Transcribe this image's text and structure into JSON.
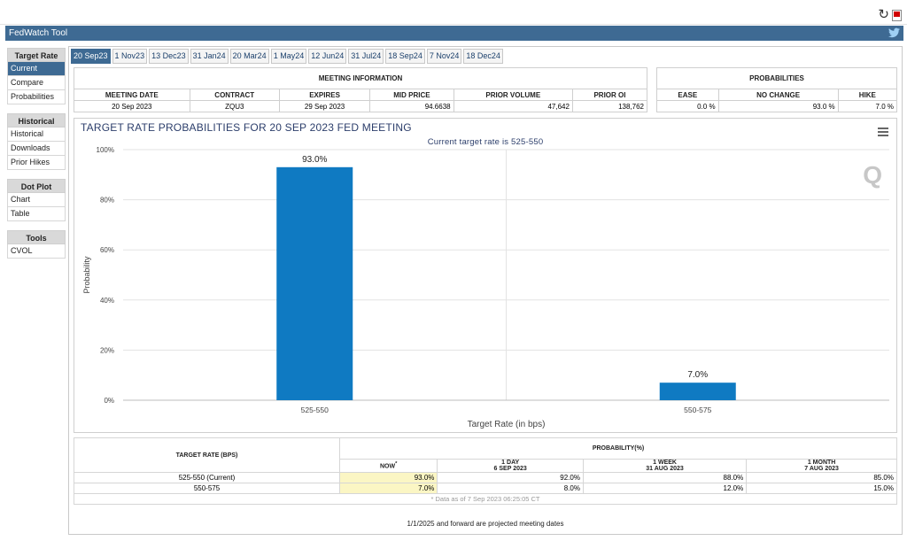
{
  "app": {
    "title": "FedWatch Tool",
    "accent": "#3e6a93"
  },
  "sidebar": {
    "groups": [
      {
        "heading": "Target Rate",
        "items": [
          "Current",
          "Compare",
          "Probabilities"
        ]
      },
      {
        "heading": "Historical",
        "items": [
          "Historical",
          "Downloads",
          "Prior Hikes"
        ]
      },
      {
        "heading": "Dot Plot",
        "items": [
          "Chart",
          "Table"
        ]
      },
      {
        "heading": "Tools",
        "items": [
          "CVOL"
        ]
      }
    ]
  },
  "tabs": [
    "20 Sep23",
    "1 Nov23",
    "13 Dec23",
    "31 Jan24",
    "20 Mar24",
    "1 May24",
    "12 Jun24",
    "31 Jul24",
    "18 Sep24",
    "7 Nov24",
    "18 Dec24"
  ],
  "meeting_info": {
    "section": "MEETING INFORMATION",
    "headers": [
      "MEETING DATE",
      "CONTRACT",
      "EXPIRES",
      "MID PRICE",
      "PRIOR VOLUME",
      "PRIOR OI"
    ],
    "values": [
      "20 Sep 2023",
      "ZQU3",
      "29 Sep 2023",
      "94.6638",
      "47,642",
      "138,762"
    ]
  },
  "probabilities": {
    "section": "PROBABILITIES",
    "headers": [
      "EASE",
      "NO CHANGE",
      "HIKE"
    ],
    "values": [
      "0.0 %",
      "93.0 %",
      "7.0 %"
    ]
  },
  "chart_data": {
    "type": "bar",
    "title": "TARGET RATE PROBABILITIES FOR 20 SEP 2023 FED MEETING",
    "subtitle": "Current target rate is 525-550",
    "xlabel": "Target Rate (in bps)",
    "ylabel": "Probability",
    "categories": [
      "525-550",
      "550-575"
    ],
    "values": [
      93.0,
      7.0
    ],
    "data_labels": [
      "93.0%",
      "7.0%"
    ],
    "yticks": [
      "0%",
      "20%",
      "40%",
      "60%",
      "80%",
      "100%"
    ],
    "ylim": [
      0,
      100
    ],
    "grid": true,
    "bar_color": "#0f7ac2"
  },
  "bottom_table": {
    "rate_header": "TARGET RATE (BPS)",
    "prob_header": "PROBABILITY(%)",
    "columns": [
      {
        "line1": "NOW",
        "line2": "",
        "star": "*"
      },
      {
        "line1": "1 DAY",
        "line2": "6 SEP 2023",
        "star": ""
      },
      {
        "line1": "1 WEEK",
        "line2": "31 AUG 2023",
        "star": ""
      },
      {
        "line1": "1 MONTH",
        "line2": "7 AUG 2023",
        "star": ""
      }
    ],
    "rows": [
      {
        "rate": "525-550 (Current)",
        "values": [
          "93.0%",
          "92.0%",
          "88.0%",
          "85.0%"
        ]
      },
      {
        "rate": "550-575",
        "values": [
          "7.0%",
          "8.0%",
          "12.0%",
          "15.0%"
        ]
      }
    ],
    "note": "* Data as of 7 Sep 2023 06:25:05 CT"
  },
  "footer": "1/1/2025 and forward are projected meeting dates"
}
